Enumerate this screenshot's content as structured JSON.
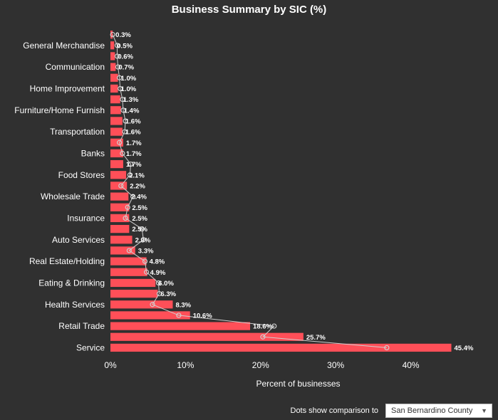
{
  "chart_data": {
    "type": "bar",
    "orientation": "horizontal",
    "title": "Business Summary by SIC (%)",
    "xlabel": "Percent of businesses",
    "ylabel": "",
    "xlim": [
      0,
      50
    ],
    "xticks": [
      "0%",
      "10%",
      "20%",
      "30%",
      "40%"
    ],
    "bar_color": "#ff4f58",
    "dot_color": "#cfcfcf",
    "categories": [
      "",
      "General Merchandise",
      "",
      "Communication",
      "",
      "Home Improvement",
      "",
      "Furniture/Home Furnish",
      "",
      "Transportation",
      "",
      "Banks",
      "",
      "Food Stores",
      "",
      "Wholesale Trade",
      "",
      "Insurance",
      "",
      "Auto Services",
      "",
      "Real Estate/Holding",
      "",
      "Eating & Drinking",
      "",
      "Health Services",
      "",
      "Retail Trade",
      "",
      "Service"
    ],
    "values": [
      0.3,
      0.5,
      0.6,
      0.7,
      1.0,
      1.0,
      1.3,
      1.4,
      1.6,
      1.6,
      1.7,
      1.7,
      1.7,
      2.1,
      2.2,
      2.4,
      2.5,
      2.5,
      2.5,
      2.9,
      3.3,
      4.8,
      4.9,
      6.0,
      6.3,
      8.3,
      10.6,
      18.6,
      25.7,
      45.4
    ],
    "labels": [
      "0.3%",
      "0.5%",
      "0.6%",
      "0.7%",
      "1.0%",
      "1.0%",
      "1.3%",
      "1.4%",
      "1.6%",
      "1.6%",
      "1.7%",
      "1.7%",
      "1.7%",
      "2.1%",
      "2.2%",
      "2.4%",
      "2.5%",
      "2.5%",
      "2.5%",
      "2.9%",
      "3.3%",
      "4.8%",
      "4.9%",
      "6.0%",
      "6.3%",
      "8.3%",
      "10.6%",
      "18.6%",
      "25.7%",
      "45.4%"
    ],
    "comparison_values": [
      0.3,
      0.9,
      0.9,
      1.0,
      1.2,
      1.3,
      1.6,
      1.7,
      2.0,
      1.9,
      1.2,
      1.6,
      2.7,
      2.6,
      1.4,
      3.0,
      2.3,
      2.0,
      4.2,
      4.4,
      2.5,
      4.6,
      4.8,
      6.4,
      6.5,
      5.6,
      9.1,
      21.8,
      20.3,
      36.8
    ]
  },
  "footer": {
    "label": "Dots show comparison to",
    "selected": "San Bernardino County"
  }
}
